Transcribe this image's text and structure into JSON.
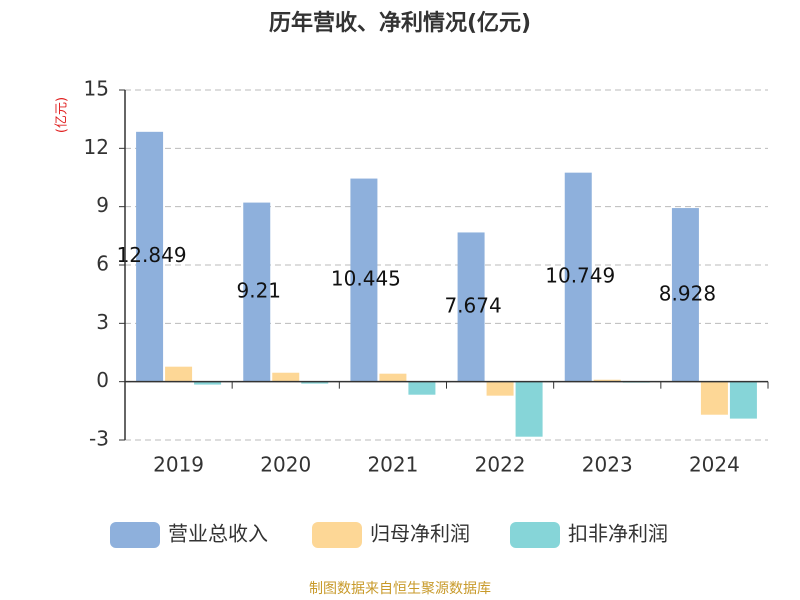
{
  "chart_data": {
    "type": "bar",
    "title": "历年营收、净利情况(亿元)",
    "y_label": "(亿元)",
    "source": "制图数据来自恒生聚源数据库",
    "categories": [
      "2019",
      "2020",
      "2021",
      "2022",
      "2023",
      "2024"
    ],
    "series": [
      {
        "name": "营业总收入",
        "color": "#8eb0dc",
        "values": [
          12.849,
          9.21,
          10.445,
          7.674,
          10.749,
          8.928
        ]
      },
      {
        "name": "归母净利润",
        "color": "#fdd796",
        "values": [
          0.77,
          0.46,
          0.41,
          -0.72,
          0.1,
          -1.7
        ]
      },
      {
        "name": "扣非净利润",
        "color": "#86d5d8",
        "values": [
          -0.15,
          -0.1,
          -0.67,
          -2.83,
          -0.05,
          -1.9
        ]
      }
    ],
    "ylim": [
      -3,
      15
    ],
    "yticks": [
      -3,
      0,
      3,
      6,
      9,
      12,
      15
    ],
    "grid": true
  }
}
